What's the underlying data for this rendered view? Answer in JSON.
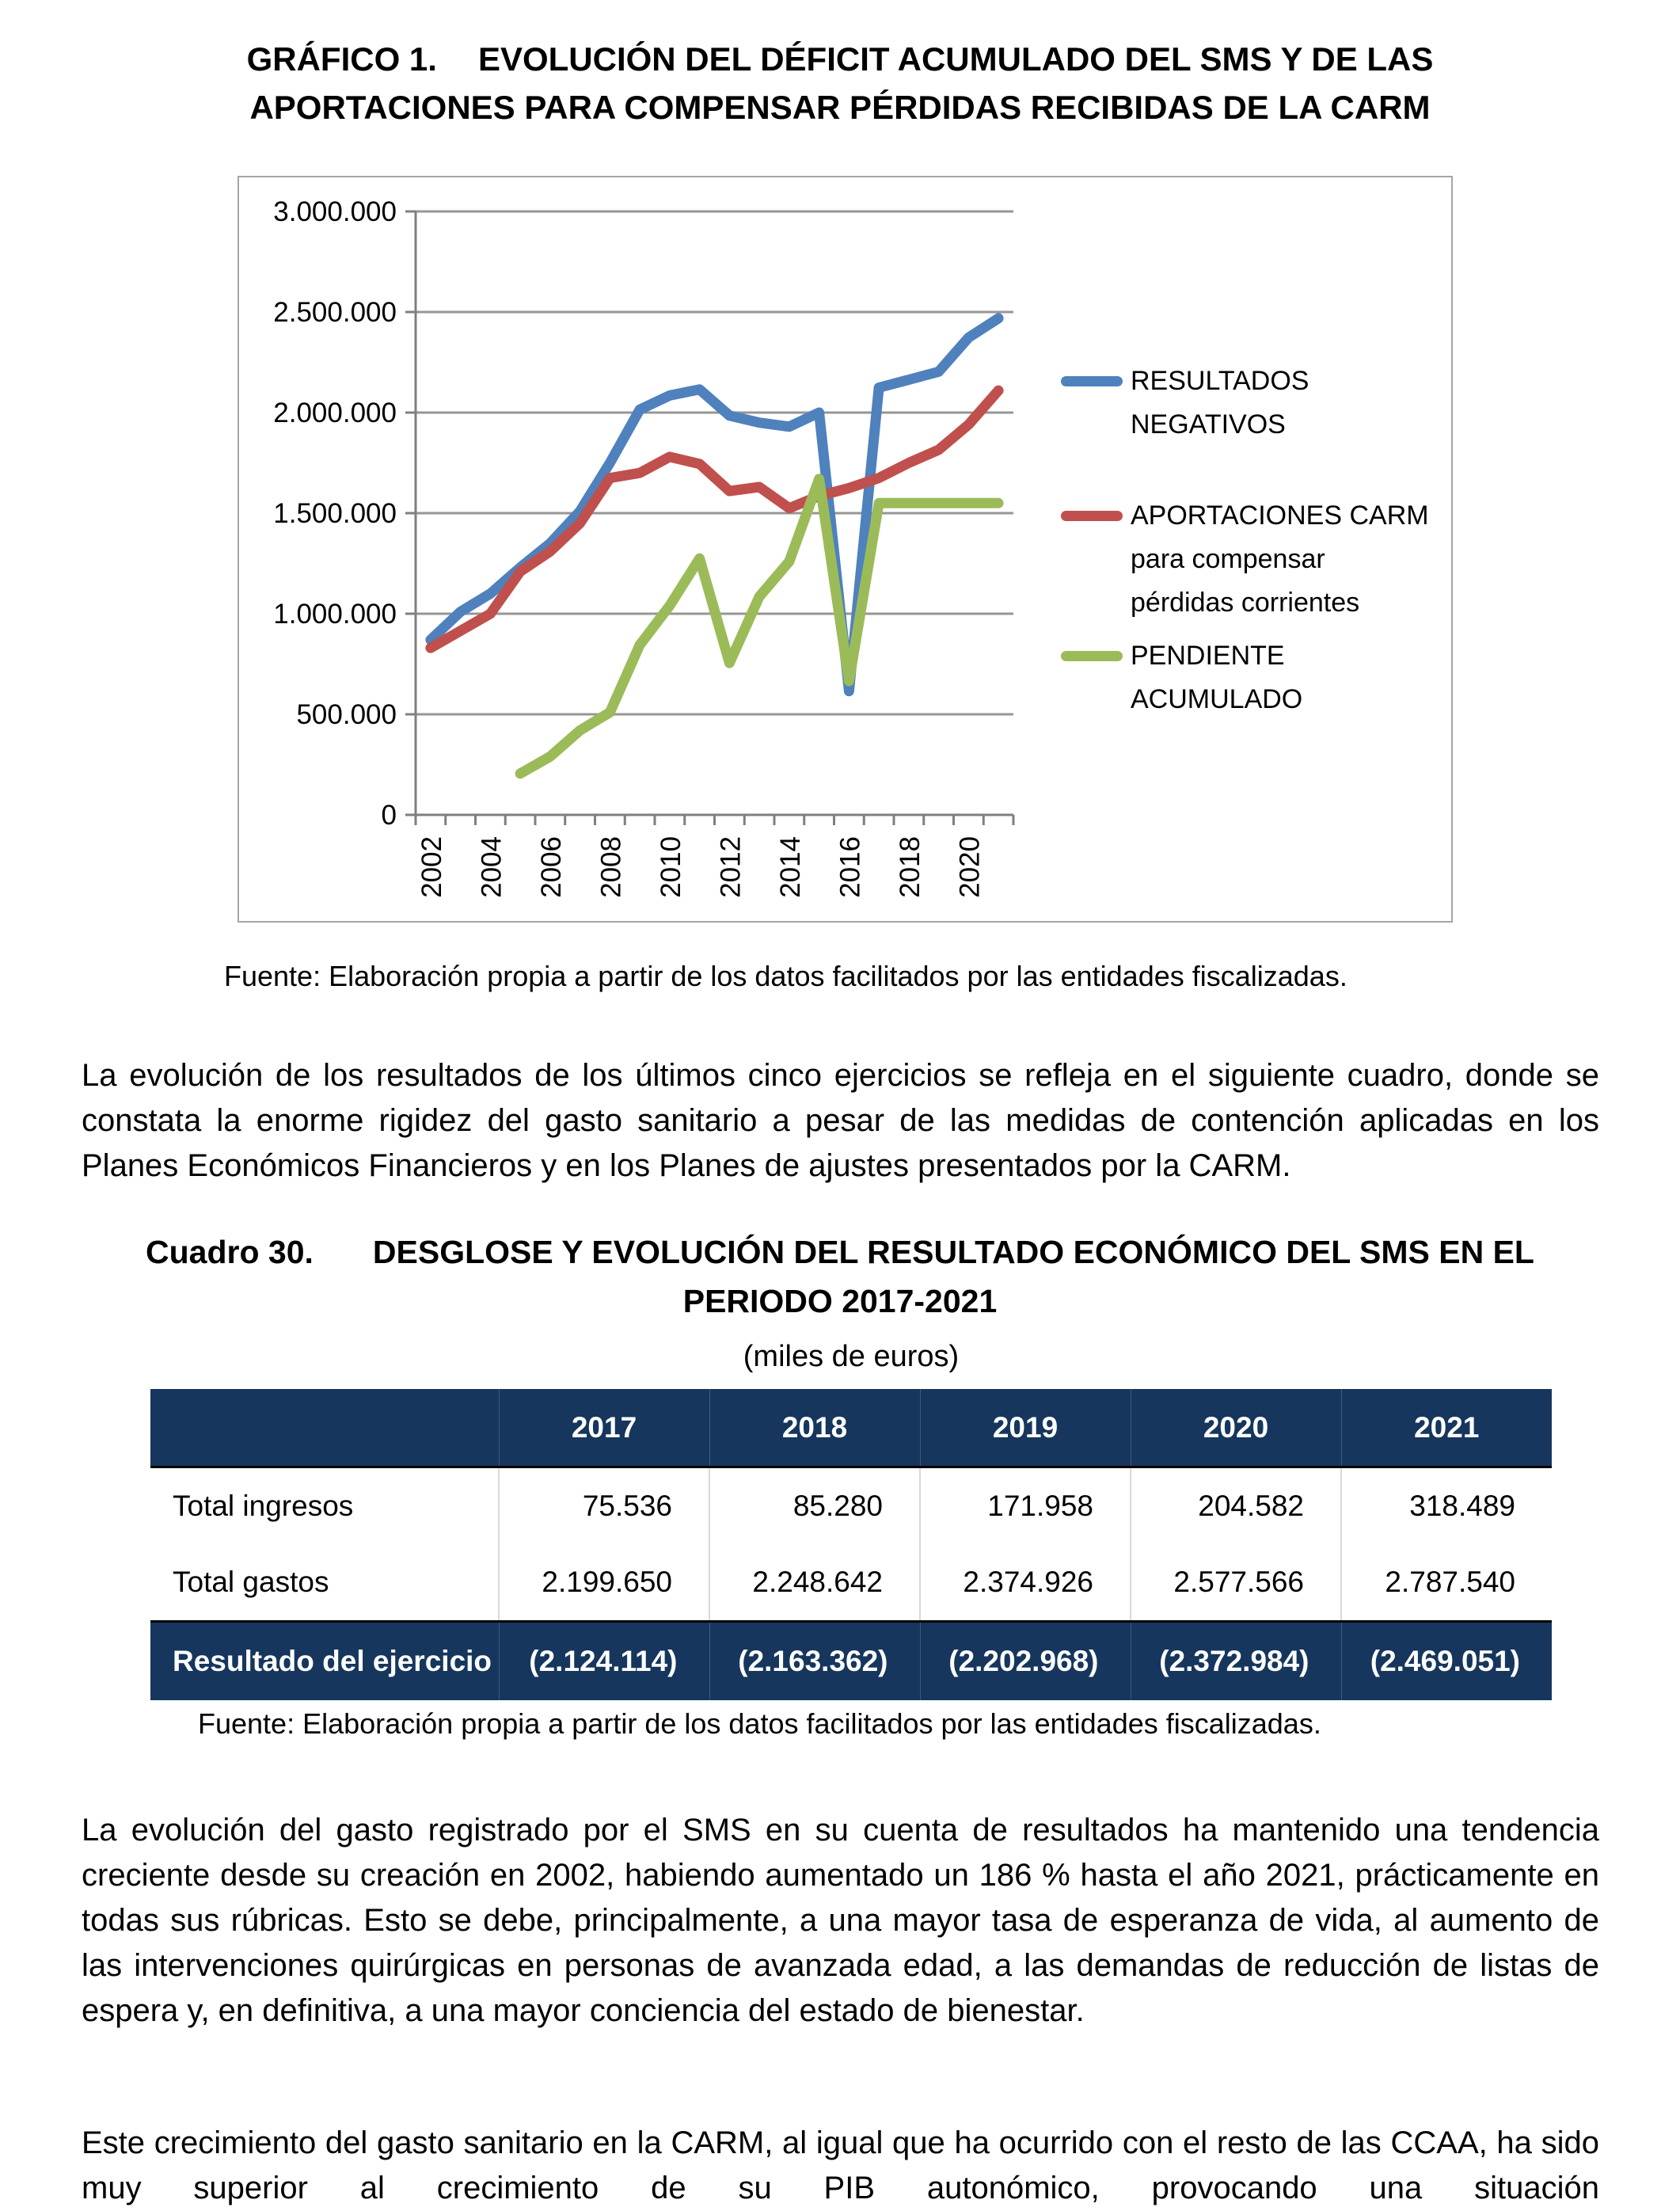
{
  "figure_title": {
    "label": "GRÁFICO 1.",
    "line1": "EVOLUCIÓN DEL DÉFICIT ACUMULADO DEL SMS Y DE LAS",
    "line2": "APORTACIONES PARA COMPENSAR PÉRDIDAS RECIBIDAS DE LA CARM"
  },
  "chart": {
    "fuente": "Fuente: Elaboración propia a partir de los datos facilitados por las entidades fiscalizadas.",
    "legend_lines": [
      [
        "RESULTADOS",
        "NEGATIVOS"
      ],
      [
        "APORTACIONES CARM",
        "para compensar",
        "pérdidas corrientes"
      ],
      [
        "PENDIENTE",
        "ACUMULADO"
      ]
    ]
  },
  "chart_data": {
    "type": "line",
    "title": "",
    "xlabel": "",
    "ylabel": "",
    "ylim": [
      0,
      3000000
    ],
    "y_step": 500000,
    "grid": true,
    "legend_position": "right",
    "x": [
      2002,
      2003,
      2004,
      2005,
      2006,
      2007,
      2008,
      2009,
      2010,
      2011,
      2012,
      2013,
      2014,
      2015,
      2016,
      2017,
      2018,
      2019,
      2020,
      2021
    ],
    "x_tick_labels": [
      "2002",
      "2004",
      "2006",
      "2008",
      "2010",
      "2012",
      "2014",
      "2016",
      "2018",
      "2020"
    ],
    "y_tick_labels": [
      "0",
      "500.000",
      "1.000.000",
      "1.500.000",
      "2.000.000",
      "2.500.000",
      "3.000.000"
    ],
    "series": [
      {
        "name": "RESULTADOS NEGATIVOS",
        "color": "#4F81BD",
        "values": [
          870000,
          1010000,
          1100000,
          1230000,
          1350000,
          1510000,
          1750000,
          2015000,
          2085000,
          2115000,
          1985000,
          1950000,
          1930000,
          2000000,
          615000,
          2124114,
          2163362,
          2202968,
          2372984,
          2469051
        ]
      },
      {
        "name": "APORTACIONES CARM para compensar pérdidas corrientes",
        "color": "#C0504D",
        "values": [
          830000,
          915000,
          1000000,
          1210000,
          1310000,
          1450000,
          1675000,
          1700000,
          1780000,
          1745000,
          1610000,
          1630000,
          1525000,
          1585000,
          1625000,
          1675000,
          1750000,
          1815000,
          1940000,
          2110000
        ]
      },
      {
        "name": "PENDIENTE ACUMULADO",
        "color": "#9BBB59",
        "values": [
          null,
          null,
          null,
          205000,
          290000,
          420000,
          510000,
          845000,
          1040000,
          1275000,
          755000,
          1085000,
          1260000,
          1670000,
          665000,
          1550000,
          1550000,
          1550000,
          1550000,
          1550000
        ]
      }
    ]
  },
  "paragraphs": {
    "p1": "La evolución de los resultados de los últimos cinco ejercicios se refleja en el siguiente cuadro, donde se constata la enorme rigidez del gasto sanitario a pesar de las medidas de contención aplicadas en los Planes Económicos Financieros y en los Planes de ajustes presentados por la CARM.",
    "p2": "La evolución del gasto registrado por el SMS en su cuenta de resultados ha mantenido una tendencia creciente desde su creación en 2002, habiendo aumentado un 186 % hasta el año 2021, prácticamente en todas sus rúbricas. Esto se debe, principalmente, a una mayor tasa de esperanza de vida, al aumento de las intervenciones quirúrgicas en personas de avanzada edad, a las demandas de reducción de listas de espera y, en definitiva, a una mayor conciencia del estado de bienestar.",
    "p3": "Este crecimiento del gasto sanitario en la CARM, al igual que ha ocurrido con el resto de las CCAA, ha sido muy superior al crecimiento de su PIB autonómico, provocando una situación"
  },
  "cuadro": {
    "label": "Cuadro 30.",
    "line1": "DESGLOSE Y EVOLUCIÓN DEL RESULTADO ECONÓMICO DEL SMS EN EL",
    "line2": "PERIODO 2017-2021"
  },
  "table": {
    "units": "(miles de euros)",
    "header_color": "#16365D",
    "columns": [
      "2017",
      "2018",
      "2019",
      "2020",
      "2021"
    ],
    "rows": [
      {
        "type": "normal",
        "label": "Total ingresos",
        "values": [
          "75.536",
          "85.280",
          "171.958",
          "204.582",
          "318.489"
        ]
      },
      {
        "type": "normal",
        "label": "Total gastos",
        "values": [
          "2.199.650",
          "2.248.642",
          "2.374.926",
          "2.577.566",
          "2.787.540"
        ]
      },
      {
        "type": "result",
        "label": "Resultado del ejercicio",
        "values": [
          "(2.124.114)",
          "(2.163.362)",
          "(2.202.968)",
          "(2.372.984)",
          "(2.469.051)"
        ]
      }
    ],
    "fuente": "Fuente: Elaboración propia a partir de los datos facilitados por las entidades fiscalizadas."
  }
}
